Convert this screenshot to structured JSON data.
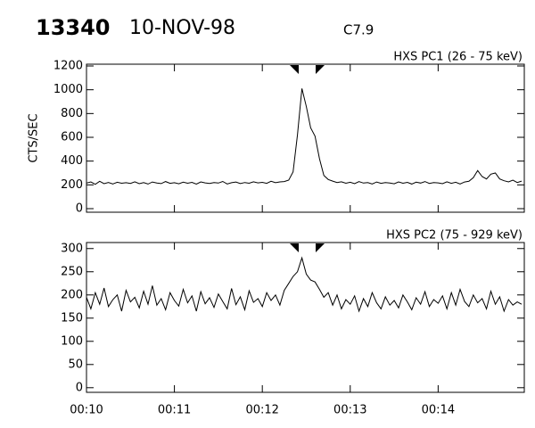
{
  "header": {
    "id": "13340",
    "date": "10-NOV-98",
    "class": "C7.9"
  },
  "chart_data": [
    {
      "type": "line",
      "title": "HXS PC1 (26 - 75 keV)",
      "ylabel": "CTS/SEC",
      "color": "#000000",
      "x": [
        10,
        10.05,
        10.1,
        10.15,
        10.2,
        10.25,
        10.3,
        10.35,
        10.4,
        10.45,
        10.5,
        10.55,
        10.6,
        10.65,
        10.7,
        10.75,
        10.8,
        10.85,
        10.9,
        10.95,
        11,
        11.05,
        11.1,
        11.15,
        11.2,
        11.25,
        11.3,
        11.35,
        11.4,
        11.45,
        11.5,
        11.55,
        11.6,
        11.65,
        11.7,
        11.75,
        11.8,
        11.85,
        11.9,
        11.95,
        12,
        12.05,
        12.1,
        12.15,
        12.2,
        12.25,
        12.3,
        12.35,
        12.4,
        12.45,
        12.5,
        12.55,
        12.6,
        12.65,
        12.7,
        12.75,
        12.8,
        12.85,
        12.9,
        12.95,
        13,
        13.05,
        13.1,
        13.15,
        13.2,
        13.25,
        13.3,
        13.35,
        13.4,
        13.45,
        13.5,
        13.55,
        13.6,
        13.65,
        13.7,
        13.75,
        13.8,
        13.85,
        13.9,
        13.95,
        14,
        14.05,
        14.1,
        14.15,
        14.2,
        14.25,
        14.3,
        14.35,
        14.4,
        14.45,
        14.5,
        14.55,
        14.6,
        14.65,
        14.7,
        14.75,
        14.8,
        14.85,
        14.9,
        14.95
      ],
      "values": [
        215,
        225,
        205,
        230,
        210,
        220,
        208,
        222,
        214,
        218,
        212,
        226,
        210,
        219,
        207,
        224,
        216,
        211,
        228,
        213,
        218,
        209,
        223,
        214,
        221,
        206,
        225,
        217,
        212,
        220,
        215,
        229,
        208,
        218,
        224,
        211,
        220,
        214,
        226,
        217,
        221,
        213,
        230,
        218,
        225,
        228,
        240,
        310,
        620,
        1010,
        860,
        680,
        610,
        420,
        280,
        245,
        232,
        220,
        226,
        214,
        222,
        210,
        227,
        215,
        219,
        208,
        224,
        213,
        220,
        216,
        209,
        225,
        214,
        221,
        207,
        223,
        215,
        228,
        212,
        219,
        217,
        210,
        226,
        213,
        222,
        208,
        224,
        230,
        260,
        320,
        270,
        250,
        290,
        300,
        250,
        235,
        225,
        240,
        220,
        232
      ],
      "xlim": [
        10,
        14.98
      ],
      "xticks": [
        10,
        11,
        12,
        13,
        14
      ],
      "ylim": [
        -30,
        1215
      ],
      "yticks": [
        0,
        200,
        400,
        600,
        800,
        1000,
        1200
      ]
    },
    {
      "type": "line",
      "title": "HXS PC2 (75 - 929 keV)",
      "color": "#000000",
      "x": [
        10,
        10.05,
        10.1,
        10.15,
        10.2,
        10.25,
        10.3,
        10.35,
        10.4,
        10.45,
        10.5,
        10.55,
        10.6,
        10.65,
        10.7,
        10.75,
        10.8,
        10.85,
        10.9,
        10.95,
        11,
        11.05,
        11.1,
        11.15,
        11.2,
        11.25,
        11.3,
        11.35,
        11.4,
        11.45,
        11.5,
        11.55,
        11.6,
        11.65,
        11.7,
        11.75,
        11.8,
        11.85,
        11.9,
        11.95,
        12,
        12.05,
        12.1,
        12.15,
        12.2,
        12.25,
        12.3,
        12.35,
        12.4,
        12.45,
        12.5,
        12.55,
        12.6,
        12.65,
        12.7,
        12.75,
        12.8,
        12.85,
        12.9,
        12.95,
        13,
        13.05,
        13.1,
        13.15,
        13.2,
        13.25,
        13.3,
        13.35,
        13.4,
        13.45,
        13.5,
        13.55,
        13.6,
        13.65,
        13.7,
        13.75,
        13.8,
        13.85,
        13.9,
        13.95,
        14,
        14.05,
        14.1,
        14.15,
        14.2,
        14.25,
        14.3,
        14.35,
        14.4,
        14.45,
        14.5,
        14.55,
        14.6,
        14.65,
        14.7,
        14.75,
        14.8,
        14.85,
        14.9,
        14.95
      ],
      "values": [
        195,
        170,
        205,
        180,
        215,
        175,
        190,
        200,
        165,
        210,
        185,
        195,
        172,
        208,
        180,
        220,
        178,
        192,
        168,
        205,
        188,
        176,
        212,
        183,
        198,
        165,
        207,
        181,
        194,
        173,
        202,
        186,
        170,
        214,
        179,
        196,
        168,
        209,
        184,
        192,
        175,
        205,
        188,
        200,
        178,
        210,
        225,
        240,
        250,
        280,
        245,
        232,
        228,
        212,
        195,
        205,
        178,
        200,
        170,
        190,
        180,
        198,
        165,
        192,
        175,
        205,
        183,
        170,
        196,
        178,
        188,
        172,
        200,
        185,
        168,
        194,
        180,
        207,
        175,
        190,
        182,
        198,
        170,
        205,
        178,
        212,
        186,
        175,
        200,
        183,
        192,
        170,
        208,
        180,
        196,
        165,
        190,
        178,
        185,
        180
      ],
      "xlim": [
        10,
        14.98
      ],
      "xticks": [
        {
          "value": 10,
          "label": "00:10"
        },
        {
          "value": 11,
          "label": "00:11"
        },
        {
          "value": 12,
          "label": "00:12"
        },
        {
          "value": 13,
          "label": "00:13"
        },
        {
          "value": 14,
          "label": "00:14"
        }
      ],
      "ylim": [
        -10,
        313
      ],
      "yticks": [
        0,
        50,
        100,
        150,
        200,
        250,
        300
      ]
    }
  ]
}
